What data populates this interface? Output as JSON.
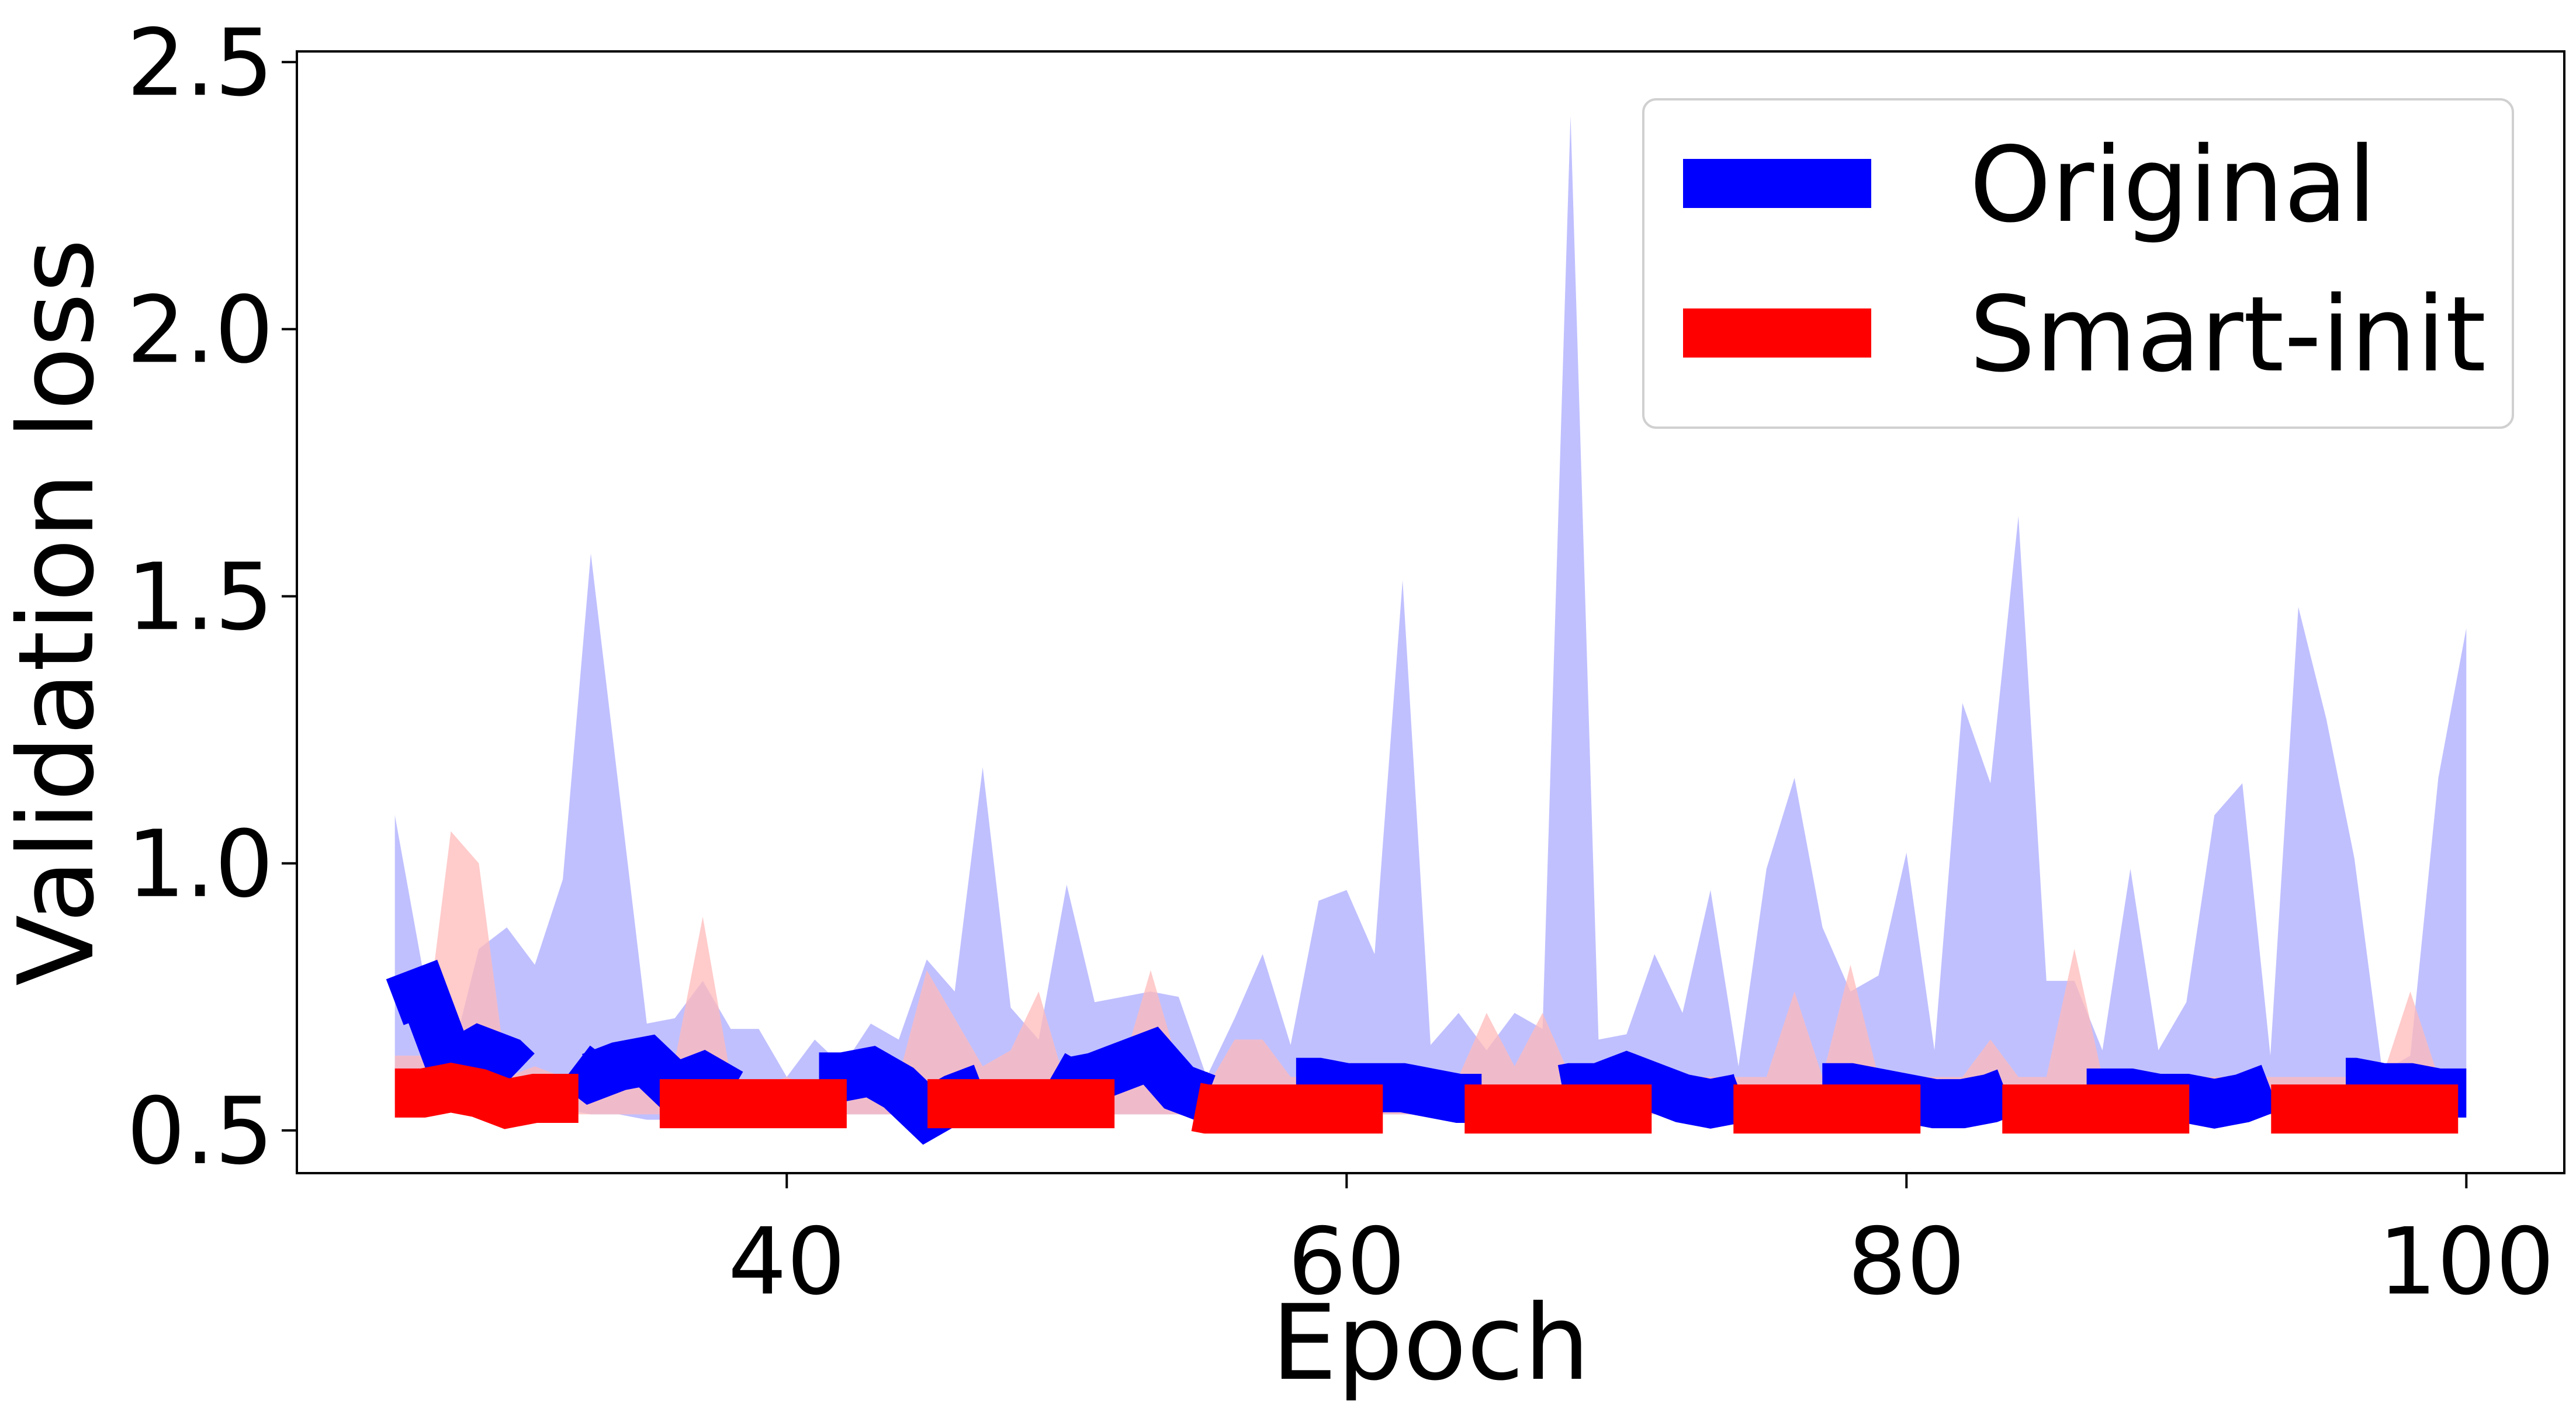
{
  "chart_data": {
    "type": "line",
    "title": "",
    "xlabel": "Epoch",
    "ylabel": "Validation loss",
    "xlim": [
      22.5,
      103.5
    ],
    "ylim": [
      0.42,
      2.52
    ],
    "xticks": [
      40,
      60,
      80,
      100
    ],
    "yticks": [
      0.5,
      1.0,
      1.5,
      2.0,
      2.5
    ],
    "xtick_labels": [
      "40",
      "60",
      "80",
      "100"
    ],
    "ytick_labels": [
      "0.5",
      "1.0",
      "1.5",
      "2.0",
      "2.5"
    ],
    "grid": false,
    "legend_position": "top-right",
    "legend": [
      "Original",
      "Smart-init"
    ],
    "x": [
      26,
      27,
      28,
      29,
      30,
      31,
      32,
      33,
      34,
      35,
      36,
      37,
      38,
      39,
      40,
      41,
      42,
      43,
      44,
      45,
      46,
      47,
      48,
      49,
      50,
      51,
      52,
      53,
      54,
      55,
      56,
      57,
      58,
      59,
      60,
      61,
      62,
      63,
      64,
      65,
      66,
      67,
      68,
      69,
      70,
      71,
      72,
      73,
      74,
      75,
      76,
      77,
      78,
      79,
      80,
      81,
      82,
      83,
      84,
      85,
      86,
      87,
      88,
      89,
      90,
      91,
      92,
      93,
      94,
      95,
      96,
      97,
      98,
      99,
      100
    ],
    "series": [
      {
        "name": "Original",
        "color": "#0000ff",
        "band_color": "#c0c0ff",
        "mean": [
          0.74,
          0.76,
          0.62,
          0.65,
          0.63,
          0.58,
          0.64,
          0.6,
          0.62,
          0.63,
          0.58,
          0.6,
          0.57,
          0.58,
          0.59,
          0.6,
          0.6,
          0.61,
          0.58,
          0.53,
          0.56,
          0.58,
          0.63,
          0.62,
          0.59,
          0.6,
          0.62,
          0.64,
          0.58,
          0.56,
          0.58,
          0.58,
          0.59,
          0.59,
          0.58,
          0.58,
          0.58,
          0.57,
          0.56,
          0.56,
          0.57,
          0.57,
          0.58,
          0.58,
          0.6,
          0.58,
          0.56,
          0.55,
          0.56,
          0.58,
          0.58,
          0.58,
          0.58,
          0.57,
          0.56,
          0.55,
          0.55,
          0.56,
          0.58,
          0.57,
          0.57,
          0.57,
          0.57,
          0.56,
          0.56,
          0.55,
          0.56,
          0.58,
          0.61,
          0.59,
          0.59,
          0.58,
          0.58,
          0.57,
          0.57
        ],
        "upper": [
          1.09,
          0.8,
          0.63,
          0.84,
          0.88,
          0.81,
          0.97,
          1.58,
          1.14,
          0.7,
          0.71,
          0.78,
          0.69,
          0.69,
          0.6,
          0.67,
          0.62,
          0.7,
          0.67,
          0.82,
          0.76,
          1.18,
          0.73,
          0.67,
          0.96,
          0.74,
          0.75,
          0.76,
          0.75,
          0.6,
          0.71,
          0.83,
          0.66,
          0.93,
          0.95,
          0.83,
          1.53,
          0.66,
          0.72,
          0.65,
          0.72,
          0.69,
          2.4,
          0.67,
          0.68,
          0.83,
          0.72,
          0.95,
          0.62,
          0.99,
          1.16,
          0.88,
          0.76,
          0.79,
          1.02,
          0.65,
          1.3,
          1.15,
          1.65,
          0.78,
          0.78,
          0.65,
          0.99,
          0.65,
          0.74,
          1.09,
          1.15,
          0.64,
          1.48,
          1.27,
          1.01,
          0.61,
          0.64,
          1.16,
          1.44
        ],
        "lower": [
          0.55,
          0.55,
          0.56,
          0.56,
          0.55,
          0.54,
          0.54,
          0.53,
          0.53,
          0.52,
          0.52,
          0.53,
          0.53,
          0.53,
          0.53,
          0.53,
          0.53,
          0.53,
          0.53,
          0.52,
          0.52,
          0.52,
          0.53,
          0.53,
          0.53,
          0.53,
          0.53,
          0.53,
          0.53,
          0.52,
          0.53,
          0.53,
          0.53,
          0.53,
          0.53,
          0.53,
          0.53,
          0.53,
          0.52,
          0.52,
          0.52,
          0.52,
          0.53,
          0.53,
          0.53,
          0.53,
          0.53,
          0.53,
          0.52,
          0.53,
          0.53,
          0.53,
          0.53,
          0.53,
          0.53,
          0.53,
          0.53,
          0.53,
          0.53,
          0.53,
          0.53,
          0.53,
          0.53,
          0.53,
          0.53,
          0.53,
          0.53,
          0.53,
          0.53,
          0.53,
          0.53,
          0.53,
          0.53,
          0.53,
          0.53
        ]
      },
      {
        "name": "Smart-init",
        "color": "#ff0000",
        "band_color": "#ffbaba",
        "mean": [
          0.57,
          0.57,
          0.58,
          0.57,
          0.55,
          0.56,
          0.56,
          0.56,
          0.56,
          0.55,
          0.55,
          0.55,
          0.55,
          0.55,
          0.55,
          0.55,
          0.55,
          0.55,
          0.54,
          0.55,
          0.55,
          0.55,
          0.55,
          0.55,
          0.55,
          0.55,
          0.55,
          0.55,
          0.55,
          0.54,
          0.54,
          0.54,
          0.54,
          0.54,
          0.54,
          0.54,
          0.54,
          0.54,
          0.54,
          0.54,
          0.54,
          0.54,
          0.54,
          0.54,
          0.54,
          0.54,
          0.54,
          0.54,
          0.54,
          0.54,
          0.54,
          0.54,
          0.54,
          0.54,
          0.54,
          0.54,
          0.54,
          0.54,
          0.54,
          0.54,
          0.54,
          0.54,
          0.54,
          0.54,
          0.54,
          0.54,
          0.54,
          0.54,
          0.54,
          0.54,
          0.54,
          0.54,
          0.54,
          0.54,
          0.54
        ],
        "upper": [
          0.64,
          0.64,
          1.06,
          1.0,
          0.6,
          0.62,
          0.6,
          0.6,
          0.58,
          0.58,
          0.63,
          0.9,
          0.6,
          0.58,
          0.6,
          0.58,
          0.58,
          0.6,
          0.6,
          0.8,
          0.71,
          0.62,
          0.65,
          0.76,
          0.58,
          0.64,
          0.62,
          0.8,
          0.62,
          0.58,
          0.67,
          0.67,
          0.6,
          0.6,
          0.58,
          0.6,
          0.58,
          0.6,
          0.6,
          0.72,
          0.62,
          0.72,
          0.6,
          0.6,
          0.6,
          0.6,
          0.6,
          0.6,
          0.6,
          0.6,
          0.76,
          0.6,
          0.81,
          0.6,
          0.6,
          0.6,
          0.6,
          0.67,
          0.6,
          0.6,
          0.84,
          0.6,
          0.6,
          0.6,
          0.6,
          0.6,
          0.6,
          0.6,
          0.6,
          0.6,
          0.6,
          0.6,
          0.76,
          0.6,
          0.6
        ],
        "lower": [
          0.54,
          0.54,
          0.54,
          0.54,
          0.53,
          0.53,
          0.53,
          0.53,
          0.53,
          0.53,
          0.53,
          0.53,
          0.53,
          0.53,
          0.53,
          0.53,
          0.53,
          0.53,
          0.53,
          0.53,
          0.53,
          0.53,
          0.53,
          0.53,
          0.53,
          0.53,
          0.53,
          0.53,
          0.53,
          0.53,
          0.53,
          0.53,
          0.53,
          0.53,
          0.53,
          0.53,
          0.53,
          0.53,
          0.53,
          0.53,
          0.53,
          0.53,
          0.53,
          0.53,
          0.53,
          0.53,
          0.53,
          0.53,
          0.53,
          0.53,
          0.53,
          0.53,
          0.53,
          0.53,
          0.53,
          0.53,
          0.53,
          0.53,
          0.53,
          0.53,
          0.53,
          0.53,
          0.53,
          0.53,
          0.53,
          0.53,
          0.53,
          0.53,
          0.53,
          0.53,
          0.53,
          0.53,
          0.53,
          0.53,
          0.53
        ]
      }
    ]
  }
}
